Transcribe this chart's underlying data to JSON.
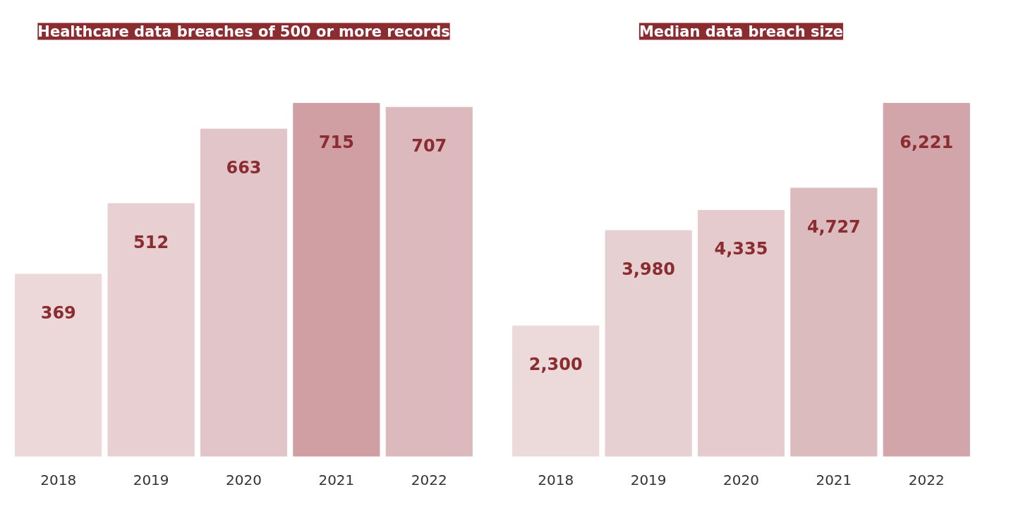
{
  "chart_data": [
    {
      "type": "bar",
      "title": "Healthcare data breaches of 500 or more records",
      "categories": [
        "2018",
        "2019",
        "2020",
        "2021",
        "2022"
      ],
      "values": [
        369,
        512,
        663,
        715,
        707
      ],
      "colors": [
        "#ecd8d9",
        "#e8d0d2",
        "#e2c5c8",
        "#cf9fa3",
        "#dbb9bc"
      ],
      "data_labels": true,
      "grid": false
    },
    {
      "type": "bar",
      "title": "Median data breach size",
      "categories": [
        "2018",
        "2019",
        "2020",
        "2021",
        "2022"
      ],
      "values": [
        2300,
        3980,
        4335,
        4727,
        6221
      ],
      "value_labels": [
        "2,300",
        "3,980",
        "4,335",
        "4,727",
        "6,221"
      ],
      "colors": [
        "#ecd9da",
        "#e6d0d1",
        "#e5cbcd",
        "#dcbbbe",
        "#d1a5a9"
      ],
      "grid": false
    }
  ]
}
